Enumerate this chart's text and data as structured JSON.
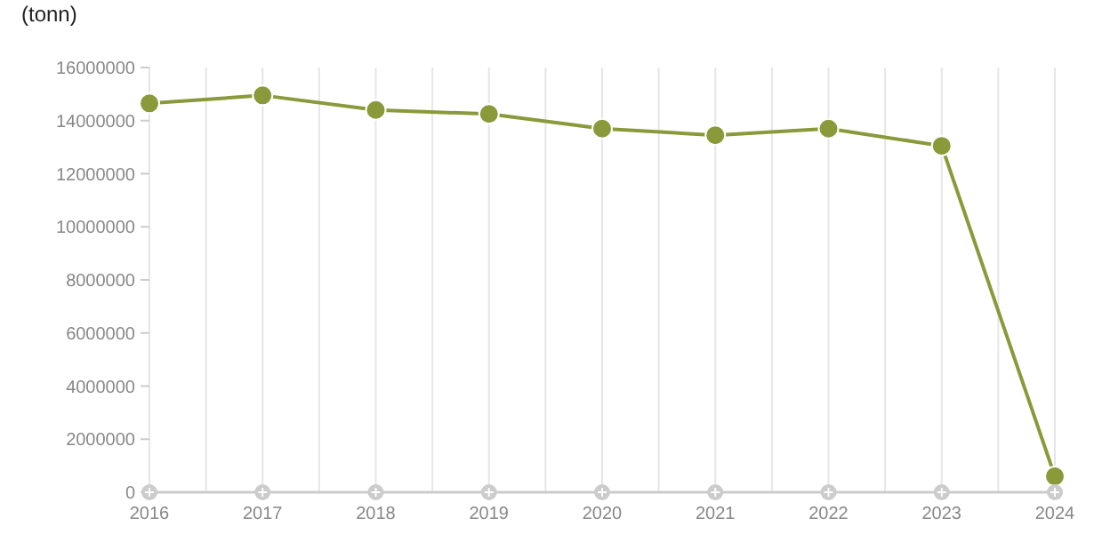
{
  "chart_data": {
    "type": "line",
    "ylabel": "(tonn)",
    "x": [
      2016,
      2017,
      2018,
      2019,
      2020,
      2021,
      2022,
      2023,
      2024
    ],
    "series": [
      {
        "color": "#8a9a3b",
        "values": [
          14650000,
          14950000,
          14400000,
          14250000,
          13700000,
          13450000,
          13700000,
          13050000,
          600000
        ]
      }
    ],
    "xlim": [
      2016,
      2024
    ],
    "xticks": [
      2016,
      2017,
      2018,
      2019,
      2020,
      2021,
      2022,
      2023,
      2024
    ],
    "ylim": [
      0,
      16000000
    ],
    "yticks": [
      0,
      2000000,
      4000000,
      6000000,
      8000000,
      10000000,
      12000000,
      14000000,
      16000000
    ],
    "grid": "x",
    "marker": "circle"
  }
}
